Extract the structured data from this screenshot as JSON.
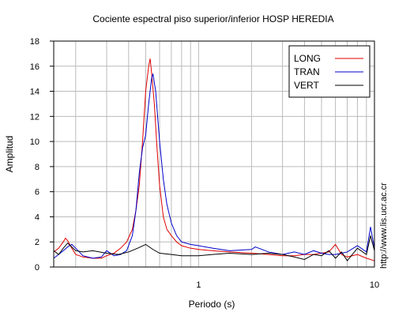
{
  "chart_data": {
    "type": "line",
    "title": "Cociente espectral piso superior/inferior  HOSP HEREDIA",
    "xlabel": "Periodo (s)",
    "ylabel": "Amplitud",
    "xscale": "log",
    "xlim": [
      0.15,
      10
    ],
    "ylim": [
      0,
      18
    ],
    "grid": true,
    "legend": "top-right",
    "x_tick_labels": [
      {
        "value": 1,
        "label": "1"
      },
      {
        "value": 10,
        "label": "10"
      }
    ],
    "y_ticks": [
      0,
      2,
      4,
      6,
      8,
      10,
      12,
      14,
      16,
      18
    ],
    "series": [
      {
        "name": "LONG",
        "color": "#e00000",
        "points": [
          [
            0.15,
            1.2
          ],
          [
            0.16,
            1.5
          ],
          [
            0.17,
            2.0
          ],
          [
            0.175,
            2.3
          ],
          [
            0.18,
            2.1
          ],
          [
            0.19,
            1.5
          ],
          [
            0.2,
            1.0
          ],
          [
            0.22,
            0.8
          ],
          [
            0.25,
            0.7
          ],
          [
            0.28,
            0.7
          ],
          [
            0.3,
            0.9
          ],
          [
            0.33,
            1.1
          ],
          [
            0.36,
            1.5
          ],
          [
            0.39,
            2.0
          ],
          [
            0.42,
            3.0
          ],
          [
            0.44,
            4.5
          ],
          [
            0.46,
            6.5
          ],
          [
            0.48,
            10.0
          ],
          [
            0.5,
            14.0
          ],
          [
            0.52,
            16.0
          ],
          [
            0.53,
            16.6
          ],
          [
            0.54,
            15.5
          ],
          [
            0.56,
            13.0
          ],
          [
            0.58,
            9.5
          ],
          [
            0.6,
            6.5
          ],
          [
            0.63,
            4.0
          ],
          [
            0.66,
            3.0
          ],
          [
            0.7,
            2.5
          ],
          [
            0.75,
            2.0
          ],
          [
            0.8,
            1.7
          ],
          [
            0.9,
            1.5
          ],
          [
            1.0,
            1.4
          ],
          [
            1.2,
            1.3
          ],
          [
            1.5,
            1.2
          ],
          [
            2.0,
            1.1
          ],
          [
            2.5,
            1.0
          ],
          [
            3.0,
            0.9
          ],
          [
            3.5,
            0.9
          ],
          [
            4.0,
            1.0
          ],
          [
            4.5,
            1.0
          ],
          [
            5.0,
            1.1
          ],
          [
            5.5,
            1.2
          ],
          [
            6.0,
            1.8
          ],
          [
            6.5,
            1.0
          ],
          [
            7.0,
            0.8
          ],
          [
            8.0,
            1.0
          ],
          [
            9.0,
            0.7
          ],
          [
            10.0,
            0.5
          ]
        ]
      },
      {
        "name": "TRAN",
        "color": "#0000cc",
        "points": [
          [
            0.15,
            0.7
          ],
          [
            0.16,
            1.0
          ],
          [
            0.17,
            1.3
          ],
          [
            0.18,
            1.6
          ],
          [
            0.19,
            1.8
          ],
          [
            0.2,
            1.5
          ],
          [
            0.22,
            0.9
          ],
          [
            0.25,
            0.7
          ],
          [
            0.28,
            0.8
          ],
          [
            0.3,
            1.3
          ],
          [
            0.33,
            0.9
          ],
          [
            0.36,
            1.0
          ],
          [
            0.39,
            1.3
          ],
          [
            0.42,
            2.5
          ],
          [
            0.44,
            4.5
          ],
          [
            0.46,
            7.5
          ],
          [
            0.48,
            9.5
          ],
          [
            0.5,
            10.5
          ],
          [
            0.52,
            13.0
          ],
          [
            0.54,
            15.0
          ],
          [
            0.55,
            15.4
          ],
          [
            0.57,
            14.0
          ],
          [
            0.6,
            10.0
          ],
          [
            0.63,
            7.0
          ],
          [
            0.66,
            5.0
          ],
          [
            0.7,
            3.5
          ],
          [
            0.75,
            2.5
          ],
          [
            0.8,
            2.0
          ],
          [
            0.9,
            1.8
          ],
          [
            1.0,
            1.7
          ],
          [
            1.2,
            1.5
          ],
          [
            1.5,
            1.3
          ],
          [
            2.0,
            1.4
          ],
          [
            2.1,
            1.6
          ],
          [
            2.5,
            1.2
          ],
          [
            3.0,
            1.0
          ],
          [
            3.5,
            1.2
          ],
          [
            4.0,
            1.0
          ],
          [
            4.5,
            1.3
          ],
          [
            5.0,
            1.1
          ],
          [
            5.5,
            1.0
          ],
          [
            6.0,
            1.0
          ],
          [
            6.5,
            1.1
          ],
          [
            7.0,
            1.2
          ],
          [
            8.0,
            1.7
          ],
          [
            9.0,
            1.2
          ],
          [
            9.5,
            3.2
          ],
          [
            10.0,
            1.5
          ]
        ]
      },
      {
        "name": "VERT",
        "color": "#000000",
        "points": [
          [
            0.15,
            1.3
          ],
          [
            0.16,
            1.0
          ],
          [
            0.17,
            1.5
          ],
          [
            0.18,
            1.9
          ],
          [
            0.19,
            1.6
          ],
          [
            0.2,
            1.3
          ],
          [
            0.22,
            1.2
          ],
          [
            0.25,
            1.3
          ],
          [
            0.3,
            1.1
          ],
          [
            0.35,
            1.0
          ],
          [
            0.4,
            1.2
          ],
          [
            0.45,
            1.5
          ],
          [
            0.5,
            1.8
          ],
          [
            0.55,
            1.4
          ],
          [
            0.6,
            1.1
          ],
          [
            0.7,
            1.0
          ],
          [
            0.8,
            0.9
          ],
          [
            1.0,
            0.9
          ],
          [
            1.2,
            1.0
          ],
          [
            1.5,
            1.1
          ],
          [
            2.0,
            1.0
          ],
          [
            2.5,
            1.1
          ],
          [
            3.0,
            1.0
          ],
          [
            3.5,
            0.8
          ],
          [
            4.0,
            0.6
          ],
          [
            4.5,
            1.0
          ],
          [
            5.0,
            0.9
          ],
          [
            5.5,
            1.3
          ],
          [
            6.0,
            0.7
          ],
          [
            6.5,
            1.2
          ],
          [
            7.0,
            0.5
          ],
          [
            8.0,
            1.5
          ],
          [
            9.0,
            1.0
          ],
          [
            9.5,
            2.5
          ],
          [
            10.0,
            1.3
          ]
        ]
      }
    ]
  },
  "side_text": "http://www.lis.ucr.ac.cr"
}
